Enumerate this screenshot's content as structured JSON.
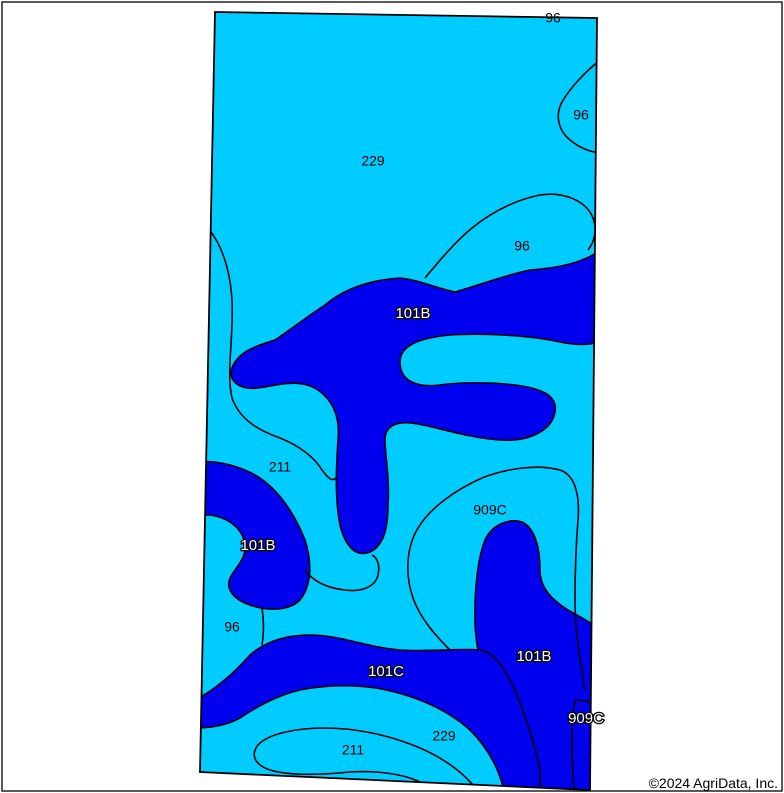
{
  "colors": {
    "light_unit": "#00ccff",
    "dark_unit": "#0000ee",
    "boundary": "#000000",
    "frame": "#222222"
  },
  "labels": {
    "l96_top": "96",
    "l96_right": "96",
    "l229_top": "229",
    "l96_mid": "96",
    "l101b_center": "101B",
    "l211_left": "211",
    "l909c_center": "909C",
    "l101b_left": "101B",
    "l96_left": "96",
    "l101b_right": "101B",
    "l101c": "101C",
    "l909c_right": "909C",
    "l229_bottom": "229",
    "l211_bottom": "211"
  },
  "footer": {
    "copyright": "©2024 AgriData, Inc."
  }
}
